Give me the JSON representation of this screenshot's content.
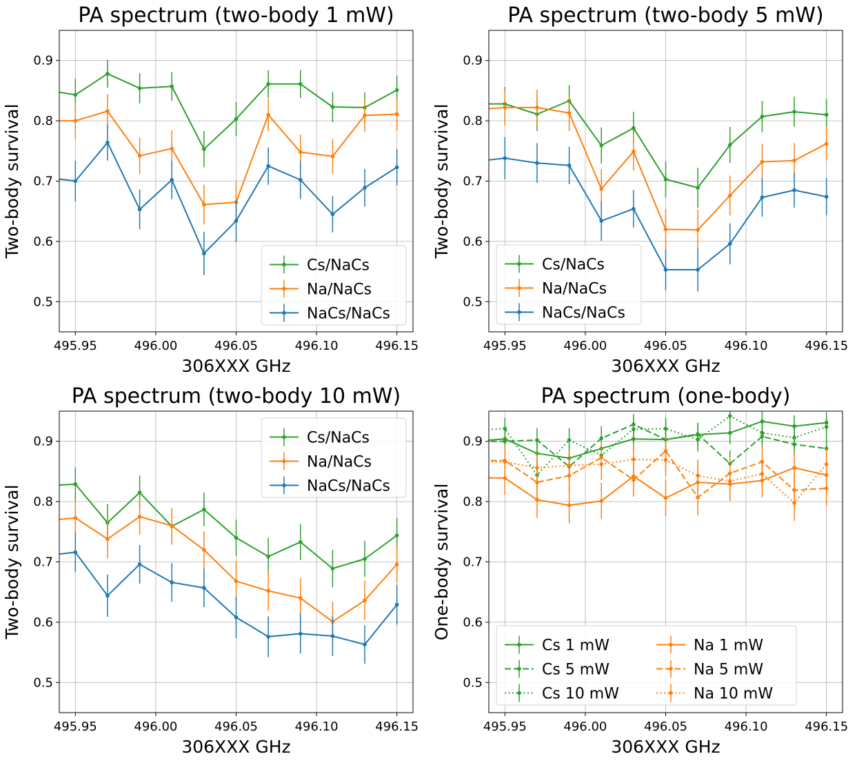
{
  "chart_data": [
    {
      "type": "line",
      "title": "PA spectrum (two-body 1 mW)",
      "xlabel": "306XXX GHz",
      "ylabel": "Two-body survival",
      "xlim": [
        495.94,
        496.16
      ],
      "ylim": [
        0.45,
        0.95
      ],
      "xticks": [
        "495.95",
        "496.00",
        "496.05",
        "496.10",
        "496.15"
      ],
      "yticks": [
        "0.5",
        "0.6",
        "0.7",
        "0.8",
        "0.9"
      ],
      "grid": true,
      "legend_position": "lower-right",
      "legend_columns": 1,
      "x": [
        495.93,
        495.95,
        495.97,
        495.99,
        496.01,
        496.03,
        496.05,
        496.07,
        496.09,
        496.11,
        496.13,
        496.15
      ],
      "series": [
        {
          "name": "Cs/NaCs",
          "color": "#2ca02c",
          "style": "solid",
          "values": [
            0.852,
            0.843,
            0.878,
            0.854,
            0.857,
            0.753,
            0.803,
            0.861,
            0.861,
            0.823,
            0.822,
            0.851
          ],
          "errors": [
            0.027,
            0.027,
            0.023,
            0.025,
            0.024,
            0.03,
            0.028,
            0.023,
            0.023,
            0.025,
            0.025,
            0.024
          ]
        },
        {
          "name": "Na/NaCs",
          "color": "#ff7f0e",
          "style": "solid",
          "values": [
            0.8,
            0.8,
            0.816,
            0.742,
            0.754,
            0.661,
            0.665,
            0.81,
            0.748,
            0.741,
            0.809,
            0.811
          ],
          "errors": [
            0.03,
            0.03,
            0.028,
            0.03,
            0.03,
            0.033,
            0.034,
            0.027,
            0.029,
            0.029,
            0.027,
            0.027
          ]
        },
        {
          "name": "NaCs/NaCs",
          "color": "#1f77b4",
          "style": "solid",
          "values": [
            0.707,
            0.7,
            0.764,
            0.653,
            0.702,
            0.58,
            0.634,
            0.725,
            0.702,
            0.645,
            0.689,
            0.723
          ],
          "errors": [
            0.034,
            0.034,
            0.03,
            0.033,
            0.032,
            0.036,
            0.035,
            0.031,
            0.032,
            0.03,
            0.031,
            0.03
          ]
        }
      ]
    },
    {
      "type": "line",
      "title": "PA spectrum (two-body 5 mW)",
      "xlabel": "306XXX GHz",
      "ylabel": "Two-body survival",
      "xlim": [
        495.94,
        496.16
      ],
      "ylim": [
        0.45,
        0.95
      ],
      "xticks": [
        "495.95",
        "496.00",
        "496.05",
        "496.10",
        "496.15"
      ],
      "yticks": [
        "0.5",
        "0.6",
        "0.7",
        "0.8",
        "0.9"
      ],
      "grid": true,
      "legend_position": "lower-left",
      "legend_columns": 1,
      "x": [
        495.93,
        495.95,
        495.97,
        495.99,
        496.01,
        496.03,
        496.05,
        496.07,
        496.09,
        496.11,
        496.13,
        496.15
      ],
      "series": [
        {
          "name": "Cs/NaCs",
          "color": "#2ca02c",
          "style": "solid",
          "values": [
            0.828,
            0.828,
            0.811,
            0.833,
            0.759,
            0.788,
            0.703,
            0.689,
            0.76,
            0.807,
            0.815,
            0.81
          ],
          "errors": [
            0.028,
            0.028,
            0.028,
            0.026,
            0.03,
            0.027,
            0.03,
            0.033,
            0.03,
            0.026,
            0.025,
            0.026
          ]
        },
        {
          "name": "Na/NaCs",
          "color": "#ff7f0e",
          "style": "solid",
          "values": [
            0.818,
            0.822,
            0.822,
            0.813,
            0.687,
            0.749,
            0.62,
            0.619,
            0.676,
            0.732,
            0.734,
            0.762
          ],
          "errors": [
            0.03,
            0.03,
            0.03,
            0.03,
            0.033,
            0.031,
            0.033,
            0.034,
            0.033,
            0.03,
            0.029,
            0.028
          ]
        },
        {
          "name": "NaCs/NaCs",
          "color": "#1f77b4",
          "style": "solid",
          "values": [
            0.732,
            0.738,
            0.73,
            0.726,
            0.634,
            0.654,
            0.553,
            0.553,
            0.596,
            0.673,
            0.685,
            0.674
          ],
          "errors": [
            0.035,
            0.035,
            0.033,
            0.031,
            0.033,
            0.031,
            0.034,
            0.036,
            0.034,
            0.032,
            0.029,
            0.031
          ]
        }
      ]
    },
    {
      "type": "line",
      "title": "PA spectrum (two-body 10 mW)",
      "xlabel": "306XXX GHz",
      "ylabel": "Two-body survival",
      "xlim": [
        495.94,
        496.16
      ],
      "ylim": [
        0.45,
        0.95
      ],
      "xticks": [
        "495.95",
        "496.00",
        "496.05",
        "496.10",
        "496.15"
      ],
      "yticks": [
        "0.5",
        "0.6",
        "0.7",
        "0.8",
        "0.9"
      ],
      "grid": true,
      "legend_position": "upper-right",
      "legend_columns": 1,
      "x": [
        495.93,
        495.95,
        495.97,
        495.99,
        496.01,
        496.03,
        496.05,
        496.07,
        496.09,
        496.11,
        496.13,
        496.15
      ],
      "series": [
        {
          "name": "Cs/NaCs",
          "color": "#2ca02c",
          "style": "solid",
          "values": [
            0.826,
            0.829,
            0.765,
            0.815,
            0.759,
            0.787,
            0.74,
            0.709,
            0.733,
            0.689,
            0.705,
            0.744
          ],
          "errors": [
            0.028,
            0.028,
            0.031,
            0.028,
            0.03,
            0.028,
            0.03,
            0.031,
            0.03,
            0.031,
            0.03,
            0.029
          ]
        },
        {
          "name": "Na/NaCs",
          "color": "#ff7f0e",
          "style": "solid",
          "values": [
            0.768,
            0.773,
            0.738,
            0.775,
            0.76,
            0.72,
            0.668,
            0.652,
            0.64,
            0.601,
            0.636,
            0.696
          ],
          "errors": [
            0.031,
            0.031,
            0.032,
            0.03,
            0.029,
            0.031,
            0.033,
            0.033,
            0.033,
            0.033,
            0.033,
            0.031
          ]
        },
        {
          "name": "NaCs/NaCs",
          "color": "#1f77b4",
          "style": "solid",
          "values": [
            0.71,
            0.716,
            0.644,
            0.696,
            0.666,
            0.657,
            0.608,
            0.576,
            0.581,
            0.577,
            0.563,
            0.629
          ],
          "errors": [
            0.033,
            0.033,
            0.035,
            0.032,
            0.032,
            0.032,
            0.034,
            0.034,
            0.033,
            0.033,
            0.032,
            0.033
          ]
        }
      ]
    },
    {
      "type": "line",
      "title": "PA spectrum (one-body)",
      "xlabel": "306XXX GHz",
      "ylabel": "One-body survival",
      "xlim": [
        495.94,
        496.16
      ],
      "ylim": [
        0.45,
        0.95
      ],
      "xticks": [
        "495.95",
        "496.00",
        "496.05",
        "496.10",
        "496.15"
      ],
      "yticks": [
        "0.5",
        "0.6",
        "0.7",
        "0.8",
        "0.9"
      ],
      "grid": true,
      "legend_position": "lower-left",
      "legend_columns": 2,
      "x": [
        495.93,
        495.95,
        495.97,
        495.99,
        496.01,
        496.03,
        496.05,
        496.07,
        496.09,
        496.11,
        496.13,
        496.15
      ],
      "series": [
        {
          "name": "Cs 1 mW",
          "color": "#2ca02c",
          "style": "solid",
          "values": [
            0.9,
            0.904,
            0.88,
            0.872,
            0.888,
            0.904,
            0.903,
            0.911,
            0.914,
            0.933,
            0.925,
            0.931
          ],
          "errors": [
            0.02,
            0.02,
            0.022,
            0.022,
            0.021,
            0.02,
            0.02,
            0.019,
            0.019,
            0.017,
            0.018,
            0.017
          ]
        },
        {
          "name": "Cs 5 mW",
          "color": "#2ca02c",
          "style": "dashed",
          "values": [
            0.9,
            0.9,
            0.902,
            0.858,
            0.905,
            0.928,
            0.903,
            0.912,
            0.863,
            0.908,
            0.895,
            0.888
          ],
          "errors": [
            0.02,
            0.02,
            0.02,
            0.023,
            0.02,
            0.017,
            0.02,
            0.019,
            0.022,
            0.019,
            0.02,
            0.02
          ]
        },
        {
          "name": "Cs 10 mW",
          "color": "#2ca02c",
          "style": "dotted",
          "values": [
            0.918,
            0.921,
            0.844,
            0.902,
            0.877,
            0.92,
            0.921,
            0.903,
            0.942,
            0.914,
            0.906,
            0.924
          ],
          "errors": [
            0.018,
            0.018,
            0.023,
            0.02,
            0.021,
            0.018,
            0.018,
            0.02,
            0.016,
            0.018,
            0.019,
            0.018
          ]
        },
        {
          "name": "Na 1 mW",
          "color": "#ff7f0e",
          "style": "solid",
          "values": [
            0.84,
            0.839,
            0.803,
            0.794,
            0.801,
            0.842,
            0.806,
            0.832,
            0.829,
            0.835,
            0.856,
            0.844
          ],
          "errors": [
            0.028,
            0.028,
            0.03,
            0.03,
            0.03,
            0.027,
            0.03,
            0.028,
            0.028,
            0.028,
            0.026,
            0.027
          ]
        },
        {
          "name": "Na 5 mW",
          "color": "#ff7f0e",
          "style": "dashed",
          "values": [
            0.868,
            0.868,
            0.832,
            0.843,
            0.873,
            0.836,
            0.884,
            0.807,
            0.847,
            0.866,
            0.819,
            0.822
          ],
          "errors": [
            0.026,
            0.026,
            0.028,
            0.028,
            0.026,
            0.028,
            0.025,
            0.03,
            0.027,
            0.026,
            0.03,
            0.029
          ]
        },
        {
          "name": "Na 10 mW",
          "color": "#ff7f0e",
          "style": "dotted",
          "values": [
            0.865,
            0.866,
            0.856,
            0.86,
            0.862,
            0.87,
            0.869,
            0.843,
            0.834,
            0.846,
            0.798,
            0.862
          ],
          "errors": [
            0.026,
            0.026,
            0.027,
            0.027,
            0.026,
            0.026,
            0.026,
            0.027,
            0.028,
            0.027,
            0.03,
            0.026
          ]
        }
      ]
    }
  ]
}
